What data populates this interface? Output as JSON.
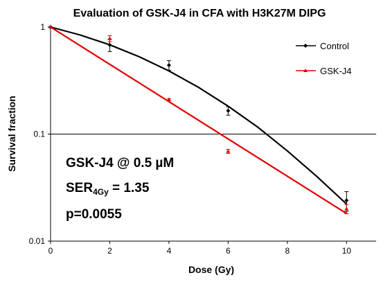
{
  "chart_data": {
    "type": "line",
    "title": "Evaluation of GSK-J4 in CFA with H3K27M DIPG",
    "xlabel": "Dose (Gy)",
    "ylabel": "Survival fraction",
    "xlim": [
      0,
      11
    ],
    "ylim": [
      0.01,
      1
    ],
    "yscale": "log",
    "x_ticks": [
      0,
      2,
      4,
      6,
      8,
      10
    ],
    "x_tick_labels": [
      "0",
      "2",
      "4",
      "6",
      "8",
      "10"
    ],
    "y_ticks": [
      1,
      0.1,
      0.01
    ],
    "y_tick_labels": [
      "1",
      "0.1",
      "0.01"
    ],
    "gridlines": [
      0.1
    ],
    "legend_position": "top-right",
    "series": [
      {
        "name": "Control",
        "color": "#000000",
        "marker": "diamond",
        "x": [
          0,
          2,
          4,
          6,
          10
        ],
        "y": [
          1.0,
          0.68,
          0.44,
          0.165,
          0.024
        ],
        "yerr": [
          0,
          0.09,
          0.045,
          0.015,
          0.005
        ],
        "fit_x": [
          0,
          1,
          2,
          3,
          4,
          5,
          6,
          7,
          8,
          9,
          10
        ],
        "fit_y": [
          1.0,
          0.843,
          0.682,
          0.527,
          0.389,
          0.273,
          0.182,
          0.116,
          0.0696,
          0.0401,
          0.0222
        ]
      },
      {
        "name": "GSK-J4",
        "color": "#e00000",
        "marker": "triangle",
        "x": [
          0,
          2,
          4,
          6,
          10
        ],
        "y": [
          1.0,
          0.78,
          0.21,
          0.069,
          0.02
        ],
        "yerr": [
          0,
          0.05,
          0.005,
          0.003,
          0.002
        ],
        "fit_x": [
          0,
          10
        ],
        "fit_y": [
          1.0,
          0.0181
        ]
      }
    ],
    "annotations": {
      "line1": "GSK-J4 @ 0.5 µM",
      "ser_main": "SER",
      "ser_sub": "4Gy",
      "ser_value": " = 1.35",
      "p_value": "p=0.0055"
    }
  }
}
